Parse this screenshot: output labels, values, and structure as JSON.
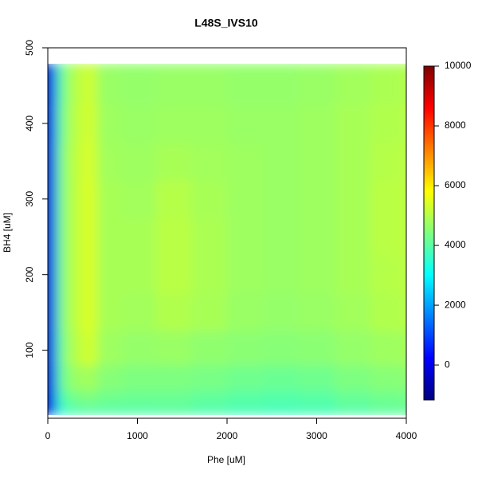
{
  "chart_data": {
    "type": "contour",
    "title": "L48S_IVS10",
    "x_label": "Phe [uM]",
    "y_label": "BH4 [uM]",
    "x": [
      0,
      50,
      150,
      300,
      450,
      650,
      1000,
      1400,
      1800,
      2200,
      2600,
      3000,
      3400,
      3800,
      4000
    ],
    "y": [
      10,
      20,
      35,
      60,
      100,
      150,
      200,
      250,
      300,
      350,
      400,
      450,
      500
    ],
    "z": [
      [
        -600,
        700,
        3200,
        3600,
        3700,
        3700,
        3700,
        3800,
        3800,
        3700,
        3600,
        3700,
        3800,
        3900,
        3900
      ],
      [
        -550,
        900,
        3600,
        3900,
        3950,
        3950,
        3950,
        4000,
        3900,
        3800,
        3750,
        3800,
        3950,
        4050,
        4100
      ],
      [
        -500,
        1100,
        3900,
        4300,
        4400,
        4250,
        4200,
        4200,
        4100,
        4000,
        3950,
        4000,
        4150,
        4250,
        4300
      ],
      [
        -500,
        1200,
        4200,
        4700,
        4800,
        4500,
        4400,
        4400,
        4350,
        4250,
        4200,
        4250,
        4400,
        4500,
        4550
      ],
      [
        -500,
        1300,
        4300,
        5000,
        5300,
        4750,
        4650,
        4700,
        4600,
        4550,
        4500,
        4550,
        4650,
        4750,
        4800
      ],
      [
        -500,
        1300,
        4400,
        5100,
        5400,
        4850,
        4800,
        4950,
        4850,
        4700,
        4650,
        4700,
        4800,
        4950,
        5000
      ],
      [
        -500,
        1300,
        4400,
        5100,
        5400,
        4850,
        4850,
        5050,
        4900,
        4750,
        4700,
        4750,
        4850,
        5000,
        5050
      ],
      [
        -500,
        1300,
        4400,
        5100,
        5400,
        4850,
        4850,
        5050,
        4900,
        4750,
        4700,
        4750,
        4850,
        5050,
        5100
      ],
      [
        -500,
        1300,
        4400,
        5100,
        5400,
        4850,
        4800,
        5000,
        4850,
        4750,
        4700,
        4750,
        4850,
        5050,
        5100
      ],
      [
        -500,
        1300,
        4400,
        5100,
        5350,
        4800,
        4750,
        4850,
        4800,
        4750,
        4700,
        4750,
        4850,
        5000,
        5050
      ],
      [
        -500,
        1250,
        4300,
        5050,
        5300,
        4750,
        4700,
        4750,
        4750,
        4700,
        4700,
        4750,
        4850,
        4950,
        5000
      ],
      [
        -550,
        1200,
        4200,
        5000,
        5250,
        4700,
        4650,
        4700,
        4700,
        4650,
        4650,
        4700,
        4800,
        4900,
        4950
      ],
      [
        -600,
        1100,
        4100,
        4900,
        5100,
        4650,
        4600,
        4600,
        4600,
        4600,
        4600,
        4650,
        4750,
        4800,
        4850
      ]
    ],
    "xlim": [
      0,
      4000
    ],
    "xticks": [
      0,
      1000,
      2000,
      3000,
      4000
    ],
    "ylim": [
      10,
      500
    ],
    "yticks": [
      100,
      200,
      300,
      400,
      500
    ],
    "zlim": [
      -1170,
      10000
    ],
    "zticks": [
      0,
      2000,
      4000,
      6000,
      8000,
      10000
    ],
    "colormap": [
      "#00007F",
      "#0000FF",
      "#007FFF",
      "#00FFFF",
      "#7FFF7F",
      "#FFFF00",
      "#FF7F00",
      "#FF0000",
      "#7F0000"
    ]
  }
}
